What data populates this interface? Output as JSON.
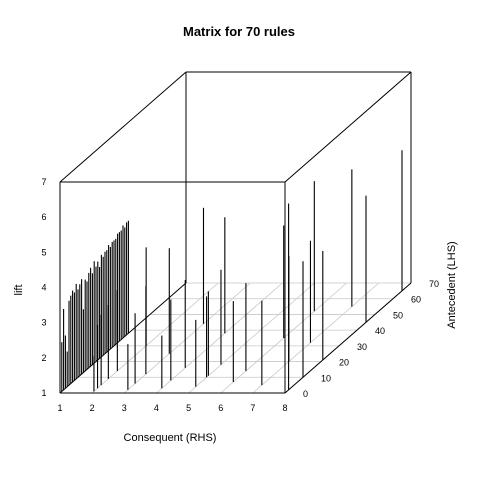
{
  "chart_data": {
    "type": "bar3d",
    "title": "Matrix for 70 rules",
    "xlabel": "Consequent (RHS)",
    "ylabel": "Antecedent (LHS)",
    "zlabel": "lift",
    "x_ticks": [
      1,
      2,
      3,
      4,
      5,
      6,
      7,
      8
    ],
    "y_ticks": [
      0,
      10,
      20,
      30,
      40,
      50,
      60,
      70
    ],
    "z_ticks": [
      1,
      2,
      3,
      4,
      5,
      6,
      7
    ],
    "xlim": [
      1,
      8
    ],
    "ylim": [
      0,
      70
    ],
    "zlim": [
      1,
      7
    ],
    "grid": true,
    "bars": [
      {
        "x": 1,
        "y": 1,
        "z": 2.4
      },
      {
        "x": 1,
        "y": 2,
        "z": 3.3
      },
      {
        "x": 1,
        "y": 3,
        "z": 2.5
      },
      {
        "x": 1,
        "y": 4,
        "z": 2.0
      },
      {
        "x": 1,
        "y": 5,
        "z": 3.4
      },
      {
        "x": 1,
        "y": 6,
        "z": 3.5
      },
      {
        "x": 1,
        "y": 7,
        "z": 3.6
      },
      {
        "x": 1,
        "y": 8,
        "z": 3.5
      },
      {
        "x": 1,
        "y": 9,
        "z": 3.7
      },
      {
        "x": 1,
        "y": 10,
        "z": 3.5
      },
      {
        "x": 1,
        "y": 11,
        "z": 3.6
      },
      {
        "x": 1,
        "y": 12,
        "z": 3.7
      },
      {
        "x": 1,
        "y": 13,
        "z": 2.8
      },
      {
        "x": 1,
        "y": 14,
        "z": 3.6
      },
      {
        "x": 1,
        "y": 15,
        "z": 3.5
      },
      {
        "x": 1,
        "y": 16,
        "z": 3.7
      },
      {
        "x": 1,
        "y": 17,
        "z": 3.8
      },
      {
        "x": 1,
        "y": 18,
        "z": 3.6
      },
      {
        "x": 1,
        "y": 19,
        "z": 3.9
      },
      {
        "x": 1,
        "y": 20,
        "z": 3.7
      },
      {
        "x": 1,
        "y": 21,
        "z": 3.8
      },
      {
        "x": 1,
        "y": 22,
        "z": 3.6
      },
      {
        "x": 1,
        "y": 23,
        "z": 3.9
      },
      {
        "x": 1,
        "y": 24,
        "z": 3.8
      },
      {
        "x": 1,
        "y": 25,
        "z": 3.9
      },
      {
        "x": 1,
        "y": 26,
        "z": 3.9
      },
      {
        "x": 1,
        "y": 27,
        "z": 4.0
      },
      {
        "x": 1,
        "y": 28,
        "z": 3.9
      },
      {
        "x": 1,
        "y": 29,
        "z": 4.0
      },
      {
        "x": 1,
        "y": 30,
        "z": 4.0
      },
      {
        "x": 1,
        "y": 31,
        "z": 4.0
      },
      {
        "x": 1,
        "y": 32,
        "z": 4.1
      },
      {
        "x": 1,
        "y": 33,
        "z": 4.1
      },
      {
        "x": 1,
        "y": 34,
        "z": 4.1
      },
      {
        "x": 1,
        "y": 35,
        "z": 4.2
      },
      {
        "x": 1,
        "y": 36,
        "z": 4.1
      },
      {
        "x": 1,
        "y": 37,
        "z": 4.2
      },
      {
        "x": 1,
        "y": 38,
        "z": 4.2
      },
      {
        "x": 2,
        "y": 1,
        "z": 2.0
      },
      {
        "x": 2,
        "y": 3,
        "z": 2.8
      },
      {
        "x": 2,
        "y": 5,
        "z": 3.0
      },
      {
        "x": 2,
        "y": 9,
        "z": 3.1
      },
      {
        "x": 2,
        "y": 14,
        "z": 3.3
      },
      {
        "x": 2,
        "y": 30,
        "z": 3.8
      },
      {
        "x": 3,
        "y": 2,
        "z": 2.3
      },
      {
        "x": 3,
        "y": 6,
        "z": 3.0
      },
      {
        "x": 3,
        "y": 12,
        "z": 3.5
      },
      {
        "x": 3,
        "y": 25,
        "z": 4.0
      },
      {
        "x": 3,
        "y": 44,
        "z": 4.3
      },
      {
        "x": 4,
        "y": 3,
        "z": 2.5
      },
      {
        "x": 4,
        "y": 8,
        "z": 3.3
      },
      {
        "x": 4,
        "y": 16,
        "z": 3.5
      },
      {
        "x": 4,
        "y": 38,
        "z": 4.3
      },
      {
        "x": 5,
        "y": 4,
        "z": 2.9
      },
      {
        "x": 5,
        "y": 10,
        "z": 3.3
      },
      {
        "x": 5,
        "y": 11,
        "z": 3.4
      },
      {
        "x": 5,
        "y": 18,
        "z": 3.7
      },
      {
        "x": 6,
        "y": 7,
        "z": 3.3
      },
      {
        "x": 6,
        "y": 14,
        "z": 3.5
      },
      {
        "x": 6,
        "y": 35,
        "z": 4.2
      },
      {
        "x": 6,
        "y": 52,
        "z": 4.7
      },
      {
        "x": 7,
        "y": 5,
        "z": 3.4
      },
      {
        "x": 7,
        "y": 20,
        "z": 4.0
      },
      {
        "x": 7,
        "y": 32,
        "z": 3.9
      },
      {
        "x": 7,
        "y": 55,
        "z": 4.9
      },
      {
        "x": 8,
        "y": 2,
        "z": 6.3
      },
      {
        "x": 8,
        "y": 10,
        "z": 4.3
      },
      {
        "x": 8,
        "y": 21,
        "z": 4.1
      },
      {
        "x": 8,
        "y": 45,
        "z": 4.6
      },
      {
        "x": 8,
        "y": 65,
        "z": 5.0
      }
    ]
  }
}
